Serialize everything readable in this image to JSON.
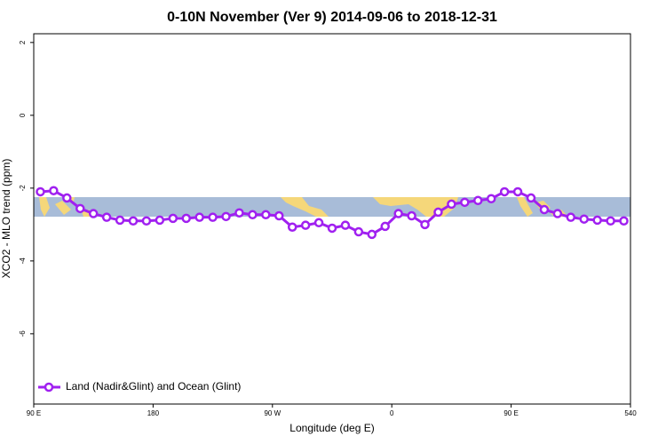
{
  "chart_data": {
    "type": "line",
    "title": "0-10N November (Ver 9)   2014-09-06 to 2018-12-31",
    "x_label": "Longitude (deg E)",
    "y_label": "XCO2 - MLO trend (ppm)",
    "x": [
      95,
      105,
      115,
      125,
      135,
      145,
      155,
      165,
      175,
      185,
      195,
      205,
      215,
      225,
      235,
      245,
      255,
      265,
      275,
      285,
      295,
      305,
      315,
      325,
      335,
      345,
      355,
      365,
      375,
      385,
      395,
      405,
      415,
      425,
      435,
      445,
      455,
      465,
      475,
      485,
      495,
      505,
      515,
      525,
      535
    ],
    "series": [
      {
        "name": "Land (Nadir&Glint) and Ocean (Glint)",
        "color": "#a020f0",
        "values": [
          -2.1,
          -2.07,
          -2.27,
          -2.56,
          -2.7,
          -2.8,
          -2.88,
          -2.9,
          -2.9,
          -2.88,
          -2.83,
          -2.83,
          -2.8,
          -2.8,
          -2.78,
          -2.68,
          -2.73,
          -2.73,
          -2.76,
          -3.07,
          -3.02,
          -2.95,
          -3.1,
          -3.02,
          -3.2,
          -3.27,
          -3.05,
          -2.7,
          -2.76,
          -3.0,
          -2.66,
          -2.44,
          -2.39,
          -2.34,
          -2.29,
          -2.1,
          -2.1,
          -2.27,
          -2.59,
          -2.7,
          -2.8,
          -2.85,
          -2.88,
          -2.9,
          -2.9
        ]
      }
    ],
    "xlim": [
      90,
      540
    ],
    "xticks": [
      {
        "value": 90,
        "label": "90 E"
      },
      180,
      {
        "value": 270,
        "label": "90 W"
      },
      {
        "value": 360,
        "label": "0"
      },
      {
        "value": 450,
        "label": "90 E"
      },
      540
    ],
    "ylim": [
      -7.93,
      2.24
    ],
    "yticks": [
      2,
      0,
      -2,
      -4,
      -6
    ],
    "legend_position": "bottomleft"
  }
}
